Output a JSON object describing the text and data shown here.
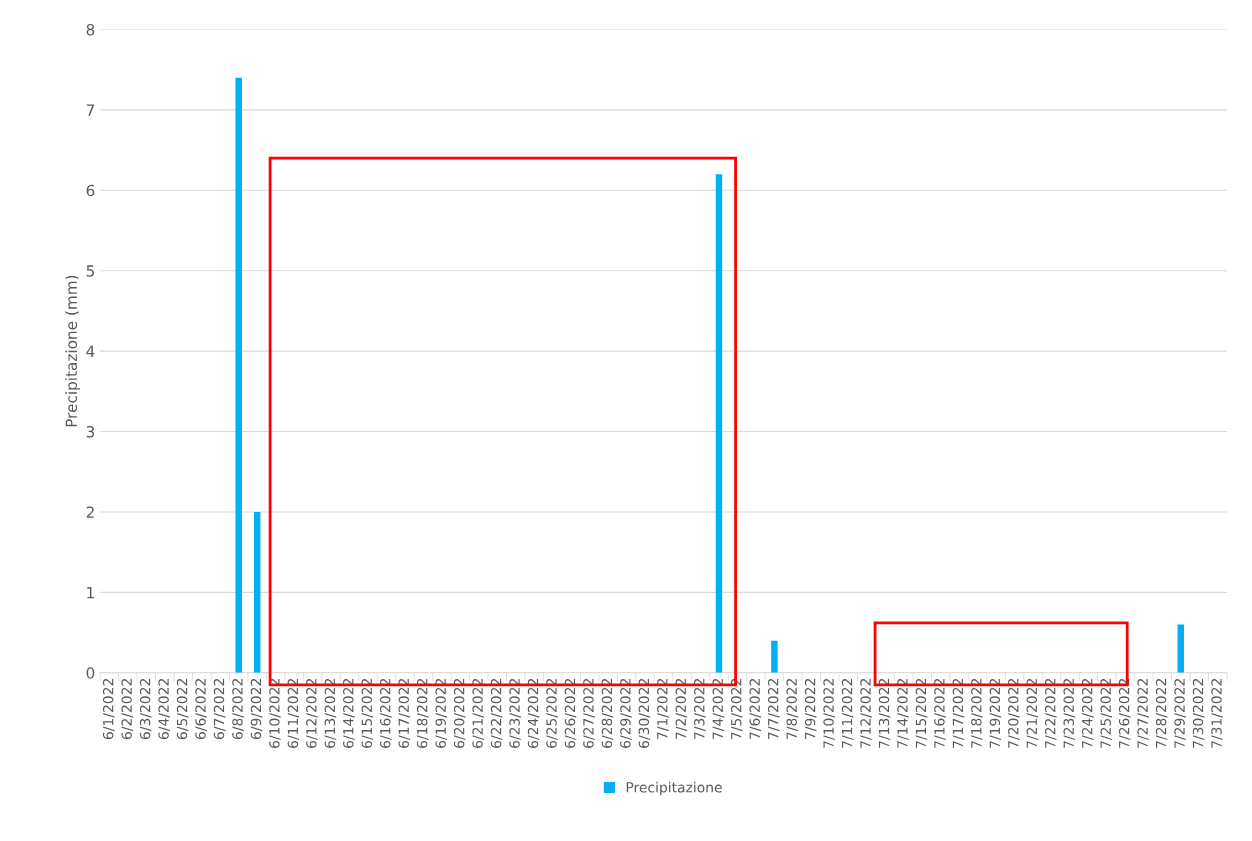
{
  "chart_data": {
    "type": "bar",
    "ylabel": "Precipitazione (mm)",
    "categories": [
      "6/1/2022",
      "6/2/2022",
      "6/3/2022",
      "6/4/2022",
      "6/5/2022",
      "6/6/2022",
      "6/7/2022",
      "6/8/2022",
      "6/9/2022",
      "6/10/2022",
      "6/11/2022",
      "6/12/2022",
      "6/13/2022",
      "6/14/2022",
      "6/15/2022",
      "6/16/2022",
      "6/17/2022",
      "6/18/2022",
      "6/19/2022",
      "6/20/2022",
      "6/21/2022",
      "6/22/2022",
      "6/23/2022",
      "6/24/2022",
      "6/25/2022",
      "6/26/2022",
      "6/27/2022",
      "6/28/2022",
      "6/29/2022",
      "6/30/2022",
      "7/1/2022",
      "7/2/2022",
      "7/3/2022",
      "7/4/2022",
      "7/5/2022",
      "7/6/2022",
      "7/7/2022",
      "7/8/2022",
      "7/9/2022",
      "7/10/2022",
      "7/11/2022",
      "7/12/2022",
      "7/13/2022",
      "7/14/2022",
      "7/15/2022",
      "7/16/2022",
      "7/17/2022",
      "7/18/2022",
      "7/19/2022",
      "7/20/2022",
      "7/21/2022",
      "7/22/2022",
      "7/23/2022",
      "7/24/2022",
      "7/25/2022",
      "7/26/2022",
      "7/27/2022",
      "7/28/2022",
      "7/29/2022",
      "7/30/2022",
      "7/31/2022"
    ],
    "series": [
      {
        "name": "Precipitazione",
        "color": "#00b0f0",
        "values": [
          0,
          0,
          0,
          0,
          0,
          0,
          0,
          7.4,
          2.0,
          0,
          0,
          0,
          0,
          0,
          0,
          0,
          0,
          0,
          0,
          0,
          0,
          0,
          0,
          0,
          0,
          0,
          0,
          0,
          0,
          0,
          0,
          0,
          0,
          6.2,
          0,
          0,
          0.4,
          0,
          0,
          0,
          0,
          0,
          0,
          0,
          0,
          0,
          0,
          0,
          0,
          0,
          0,
          0,
          0,
          0,
          0,
          0,
          0,
          0,
          0.6,
          0,
          0
        ]
      }
    ],
    "ylim": [
      0,
      8
    ],
    "yticks": [
      0,
      1,
      2,
      3,
      4,
      5,
      6,
      7,
      8
    ],
    "grid": "y",
    "legend": "bottom"
  }
}
